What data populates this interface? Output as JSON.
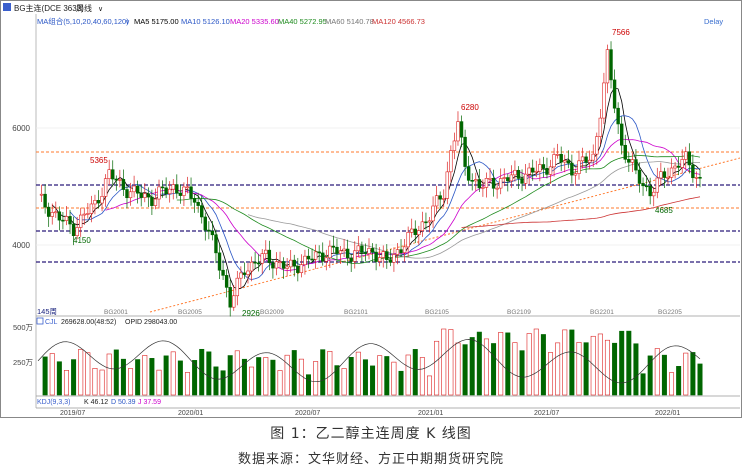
{
  "header": {
    "title": "BG主连(DCE 3633)",
    "period": "周线",
    "delay": "Delay"
  },
  "ma_legend": {
    "group": "MA组合(5,10,20,40,60,120)",
    "items": [
      {
        "text": "MA5 5175.00",
        "color": "#000000"
      },
      {
        "text": "MA10 5126.10",
        "color": "#2b57c6"
      },
      {
        "text": "MA20 5335.60",
        "color": "#cc00cc"
      },
      {
        "text": "MA40 5272.95",
        "color": "#1f8b1f"
      },
      {
        "text": "MA60 5140.78",
        "color": "#777777"
      },
      {
        "text": "MA120 4566.73",
        "color": "#cc3333"
      }
    ]
  },
  "price_labels": {
    "high_2019": "5365",
    "low_2019": "4150",
    "low_2020": "2926",
    "high_2021a": "6280",
    "high_2021b": "7566",
    "low_2022": "4685",
    "period_count": "145周"
  },
  "volume_legend": {
    "title": "CJL",
    "values": "269628.00(48:52)",
    "opid": "OPID 298043.00"
  },
  "kdj_legend": {
    "title": "KDJ(9,3,3)",
    "k": "K 46.12",
    "d": "D 50.39",
    "j": "J 37.59"
  },
  "colors": {
    "up": "#dd2222",
    "down": "#006600",
    "orange_dash": "#ff7a2e",
    "purple_dash": "#2a1a7a"
  },
  "caption": "图 1：乙二醇主连周度 K 线图",
  "source": "数据来源：文华财经、方正中期期货研究院",
  "chart_data": {
    "type": "candlestick",
    "title": "BG主连(DCE 3633) 周线",
    "y_ticks": [
      "4000",
      "6000"
    ],
    "ylim": [
      2750,
      7800
    ],
    "volume_ticks": [
      "500万",
      "250万"
    ],
    "x_ticks": [
      "2019/07",
      "2020/01",
      "2020/07",
      "2021/01",
      "2021/07",
      "2022/01"
    ],
    "x_mini_ticks": [
      "BG2001",
      "BG2005",
      "BG2009",
      "BG2101",
      "BG2105",
      "BG2109",
      "BG2201",
      "BG2205"
    ],
    "h_levels": {
      "orange_dashed": [
        5560,
        4610
      ],
      "purple_dashed": [
        5000,
        4230,
        3710
      ]
    },
    "trendline": {
      "from": [
        "2020/03",
        2950
      ],
      "to": [
        "2022/06",
        5600
      ]
    },
    "series": [
      {
        "name": "MA5",
        "last": 5175.0
      },
      {
        "name": "MA10",
        "last": 5126.1
      },
      {
        "name": "MA20",
        "last": 5335.6
      },
      {
        "name": "MA40",
        "last": 5272.95
      },
      {
        "name": "MA60",
        "last": 5140.78
      },
      {
        "name": "MA120",
        "last": 4566.73
      }
    ],
    "annotated_points": [
      {
        "label": "5365",
        "value": 5365
      },
      {
        "label": "4150",
        "value": 4150
      },
      {
        "label": "2926",
        "value": 2926
      },
      {
        "label": "6280",
        "value": 6280
      },
      {
        "label": "7566",
        "value": 7566
      },
      {
        "label": "4685",
        "value": 4685
      }
    ],
    "volume": {
      "name": "CJL",
      "last": 269628.0
    },
    "kdj": {
      "K": 46.12,
      "D": 50.39,
      "J": 37.59
    }
  }
}
